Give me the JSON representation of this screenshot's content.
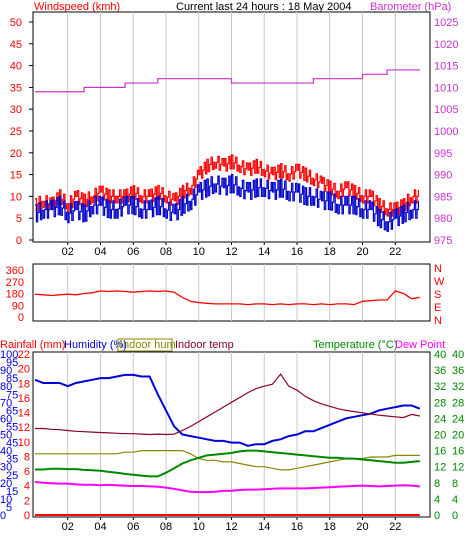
{
  "header": {
    "left": "Windspeed (kmh)",
    "center": "Current last 24 hours : 18 May 2004",
    "right": "Barometer (hPa)"
  },
  "colors": {
    "wind_gust": "#ff0000",
    "wind_avg": "#0000cc",
    "barometer": "#cc33cc",
    "direction": "#ff0000",
    "humidity": "#0000dd",
    "indoor_hum": "#888800",
    "indoor_temp": "#880033",
    "temperature": "#008800",
    "dew_point": "#ff00ff",
    "rainfall": "#ff0000",
    "left_axis": "#ff0000",
    "right_axis": "#cc33cc",
    "right_axis_bottom": "#008800"
  },
  "legend": {
    "rainfall": "Rainfall (mm)",
    "humidity": "Humidity (%)",
    "indoor_hum": "Indoor hum",
    "indoor_temp": "Indoor temp",
    "temperature": "Temperature (°C)",
    "dew_point": "Dew Point"
  },
  "chart_data": [
    {
      "type": "line",
      "x": [
        0,
        0.5,
        1,
        1.5,
        2,
        2.5,
        3,
        3.5,
        4,
        4.5,
        5,
        5.5,
        6,
        6.5,
        7,
        7.5,
        8,
        8.5,
        9,
        9.5,
        10,
        10.5,
        11,
        11.5,
        12,
        12.5,
        13,
        13.5,
        14,
        14.5,
        15,
        15.5,
        16,
        16.5,
        17,
        17.5,
        18,
        18.5,
        19,
        19.5,
        20,
        20.5,
        21,
        21.5,
        22,
        22.5,
        23,
        23.5
      ],
      "x_ticks": [
        "02",
        "04",
        "06",
        "08",
        "10",
        "12",
        "14",
        "16",
        "18",
        "20",
        "22"
      ],
      "x_tick_hours": [
        2,
        4,
        6,
        8,
        10,
        12,
        14,
        16,
        18,
        20,
        22
      ],
      "y_ticks_left": [
        0,
        5,
        10,
        15,
        20,
        25,
        30,
        35,
        40,
        45,
        50
      ],
      "ylim": [
        0,
        50
      ],
      "y_ticks_right": [
        975,
        980,
        985,
        990,
        995,
        1000,
        1005,
        1010,
        1015,
        1020,
        1025
      ],
      "ylim_right": [
        975,
        1025
      ],
      "series": [
        {
          "key": "wind_gust",
          "axis": "left",
          "values": [
            8,
            9,
            8,
            10,
            8,
            10,
            9,
            10,
            11,
            10,
            10,
            10,
            11,
            10,
            10,
            11,
            10,
            9,
            11,
            12,
            15,
            17,
            18,
            17,
            18,
            17,
            16,
            17,
            16,
            15,
            16,
            15,
            16,
            15,
            14,
            13,
            12,
            11,
            12,
            11,
            10,
            10,
            8,
            7,
            7,
            8,
            10,
            10
          ]
        },
        {
          "key": "wind_avg",
          "axis": "left",
          "values": [
            6,
            7,
            7,
            8,
            6,
            7,
            6,
            8,
            8,
            7,
            7,
            8,
            8,
            7,
            7,
            8,
            7,
            6,
            8,
            9,
            11,
            12,
            13,
            12,
            13,
            12,
            11,
            12,
            12,
            11,
            12,
            11,
            11,
            10,
            10,
            9,
            9,
            8,
            8,
            8,
            7,
            7,
            5,
            4,
            5,
            6,
            7,
            7
          ]
        },
        {
          "key": "barometer",
          "axis": "right",
          "values": [
            1009,
            1009,
            1009,
            1009,
            1009,
            1009,
            1010,
            1010,
            1010,
            1010,
            1010,
            1011,
            1011,
            1011,
            1011,
            1012,
            1012,
            1012,
            1012,
            1012,
            1012,
            1012,
            1012,
            1012,
            1011,
            1011,
            1011,
            1011,
            1011,
            1011,
            1011,
            1011,
            1011,
            1011,
            1012,
            1012,
            1012,
            1012,
            1012,
            1012,
            1013,
            1013,
            1013,
            1014,
            1014,
            1014,
            1014,
            1014
          ]
        }
      ]
    },
    {
      "type": "line",
      "right_labels": [
        "N",
        "W",
        "S",
        "E",
        "N"
      ],
      "y_ticks_left": [
        0,
        90,
        180,
        270,
        360
      ],
      "ylim": [
        0,
        360
      ],
      "x": [
        0,
        0.5,
        1,
        1.5,
        2,
        2.5,
        3,
        3.5,
        4,
        4.5,
        5,
        5.5,
        6,
        6.5,
        7,
        7.5,
        8,
        8.5,
        9,
        9.5,
        10,
        10.5,
        11,
        11.5,
        12,
        12.5,
        13,
        13.5,
        14,
        14.5,
        15,
        15.5,
        16,
        16.5,
        17,
        17.5,
        18,
        18.5,
        19,
        19.5,
        20,
        20.5,
        21,
        21.5,
        22,
        22.5,
        23,
        23.5
      ],
      "series": [
        {
          "key": "direction",
          "values": [
            175,
            170,
            165,
            170,
            175,
            170,
            180,
            185,
            200,
            195,
            200,
            195,
            190,
            195,
            200,
            195,
            200,
            190,
            150,
            120,
            110,
            105,
            100,
            100,
            100,
            100,
            95,
            100,
            100,
            95,
            100,
            95,
            100,
            100,
            95,
            100,
            95,
            100,
            100,
            95,
            120,
            125,
            130,
            130,
            200,
            180,
            140,
            150
          ]
        }
      ]
    },
    {
      "type": "line",
      "x": [
        0,
        0.5,
        1,
        1.5,
        2,
        2.5,
        3,
        3.5,
        4,
        4.5,
        5,
        5.5,
        6,
        6.5,
        7,
        7.5,
        8,
        8.5,
        9,
        9.5,
        10,
        10.5,
        11,
        11.5,
        12,
        12.5,
        13,
        13.5,
        14,
        14.5,
        15,
        15.5,
        16,
        16.5,
        17,
        17.5,
        18,
        18.5,
        19,
        19.5,
        20,
        20.5,
        21,
        21.5,
        22,
        22.5,
        23,
        23.5
      ],
      "y_ticks_left": [
        0,
        5,
        10,
        15,
        20,
        25,
        30,
        35,
        40,
        45,
        50,
        55,
        60,
        65,
        70,
        75,
        80,
        85,
        90,
        95,
        100
      ],
      "y_ticks_rain": [
        0,
        2,
        4,
        6,
        8,
        10,
        12,
        14,
        16,
        18,
        20,
        22
      ],
      "ylim": [
        0,
        100
      ],
      "y_ticks_right": [
        0,
        4,
        8,
        12,
        16,
        20,
        24,
        28,
        32,
        36,
        40
      ],
      "ylim_right": [
        0,
        40
      ],
      "series": [
        {
          "key": "humidity",
          "axis": "left",
          "values": [
            84,
            82,
            82,
            82,
            80,
            82,
            83,
            84,
            85,
            85,
            86,
            87,
            87,
            86,
            86,
            75,
            65,
            55,
            50,
            49,
            48,
            47,
            46,
            46,
            45,
            45,
            43,
            44,
            44,
            46,
            47,
            49,
            50,
            52,
            52,
            54,
            56,
            58,
            60,
            61,
            62,
            63,
            65,
            66,
            67,
            68,
            68,
            66
          ]
        },
        {
          "key": "indoor_hum",
          "axis": "left",
          "values": [
            38,
            38,
            38,
            38,
            38,
            38,
            38,
            38,
            38,
            38,
            38,
            39,
            39,
            40,
            40,
            40,
            40,
            40,
            40,
            38,
            35,
            34,
            34,
            33,
            33,
            32,
            31,
            30,
            30,
            29,
            28,
            28,
            29,
            30,
            31,
            32,
            33,
            34,
            35,
            35,
            35,
            36,
            36,
            36,
            37,
            37,
            37,
            37
          ]
        },
        {
          "key": "indoor_temp",
          "axis": "right",
          "values": [
            21.5,
            21.5,
            21.3,
            21.2,
            21,
            20.8,
            20.7,
            20.6,
            20.5,
            20.4,
            20.3,
            20.2,
            20.2,
            20.1,
            20,
            20.1,
            20,
            20.1,
            21,
            22,
            23.2,
            24.4,
            25.6,
            26.8,
            28,
            29.2,
            30.4,
            31.4,
            32,
            32.5,
            35,
            32,
            31,
            29.5,
            28.4,
            27.6,
            27,
            26.4,
            26,
            25.7,
            25.4,
            25.1,
            24.8,
            24.6,
            24.4,
            24.2,
            25,
            24.6
          ]
        },
        {
          "key": "temperature",
          "axis": "right",
          "values": [
            11.3,
            11.3,
            11.5,
            11.5,
            11.4,
            11.4,
            11.2,
            11.1,
            11,
            10.7,
            10.5,
            10.2,
            10,
            9.8,
            9.6,
            9.6,
            10.5,
            11.6,
            12.8,
            13.6,
            14.2,
            14.8,
            15,
            15.2,
            15.4,
            15.8,
            16,
            16,
            15.8,
            15.6,
            15.4,
            15.2,
            15,
            14.8,
            14.6,
            14.4,
            14.2,
            14.2,
            14,
            14,
            13.8,
            13.6,
            13.4,
            13.2,
            13,
            13,
            13.2,
            13.4
          ]
        },
        {
          "key": "dew_point",
          "axis": "right",
          "values": [
            8.2,
            8,
            7.9,
            7.8,
            7.8,
            7.6,
            7.5,
            7.5,
            7.4,
            7.5,
            7.4,
            7.3,
            7.2,
            7.2,
            7.1,
            7,
            6.8,
            6.5,
            6.1,
            5.8,
            5.7,
            5.7,
            5.8,
            6,
            6,
            6.2,
            6.3,
            6.3,
            6.4,
            6.5,
            6.6,
            6.6,
            6.6,
            6.6,
            6.7,
            6.8,
            6.9,
            7,
            7.1,
            7.2,
            7.3,
            7.2,
            7.1,
            7.2,
            7.3,
            7.4,
            7.3,
            7.1
          ]
        },
        {
          "key": "rainfall",
          "axis": "left",
          "values": [
            0,
            0,
            0,
            0,
            0,
            0,
            0,
            0,
            0,
            0,
            0,
            0,
            0,
            0,
            0,
            0,
            0,
            0,
            0,
            0,
            0,
            0,
            0,
            0,
            0,
            0,
            0,
            0,
            0,
            0,
            0,
            0,
            0,
            0,
            0,
            0,
            0,
            0,
            0,
            0,
            0,
            0,
            0,
            0,
            0,
            0,
            0,
            0
          ]
        }
      ]
    }
  ]
}
